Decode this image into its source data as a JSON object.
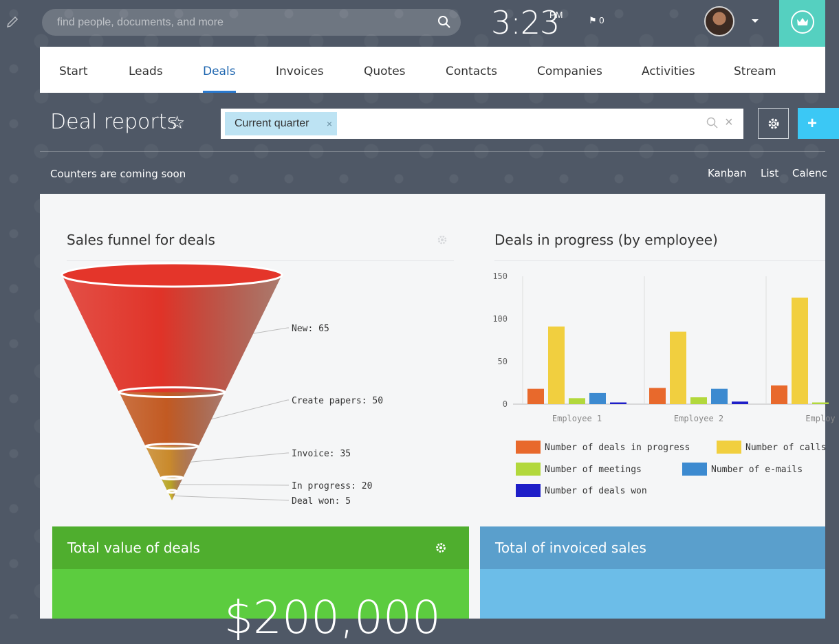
{
  "search": {
    "placeholder": "find people, documents, and more"
  },
  "header": {
    "time": "3:23",
    "ampm": "PM",
    "flag_count": "0"
  },
  "nav": {
    "items": [
      {
        "label": "Start"
      },
      {
        "label": "Leads"
      },
      {
        "label": "Deals"
      },
      {
        "label": "Invoices"
      },
      {
        "label": "Quotes"
      },
      {
        "label": "Contacts"
      },
      {
        "label": "Companies"
      },
      {
        "label": "Activities"
      },
      {
        "label": "Stream"
      }
    ],
    "active": "Deals"
  },
  "page": {
    "title": "Deal reports",
    "add_label": "+"
  },
  "filter": {
    "chip": "Current quarter",
    "chip_remove": "×",
    "clear": "×"
  },
  "subbar": {
    "counters": "Counters are coming soon",
    "views": [
      "Kanban",
      "List",
      "Calenc"
    ]
  },
  "widgets": {
    "funnel_title": "Sales funnel for deals",
    "bar_title": "Deals in progress (by employee)",
    "total_title": "Total value of deals",
    "total_value": "$200,000",
    "invoiced_title": "Total of invoiced sales"
  },
  "colors": {
    "accent_blue": "#2a7ad0",
    "teal": "#55d0c0",
    "green": "#5ccc3f",
    "light_blue": "#6cbde8"
  },
  "chart_data": [
    {
      "type": "funnel",
      "title": "Sales funnel for deals",
      "stages": [
        {
          "label": "New",
          "value": 65,
          "color": "#e03328"
        },
        {
          "label": "Create papers",
          "value": 50,
          "color": "#c25a22"
        },
        {
          "label": "Invoice",
          "value": 35,
          "color": "#c98a2c"
        },
        {
          "label": "In progress",
          "value": 20,
          "color": "#b8a424"
        },
        {
          "label": "Deal won",
          "value": 5,
          "color": "#c9b52c"
        }
      ]
    },
    {
      "type": "bar",
      "title": "Deals in progress (by employee)",
      "categories": [
        "Employee 1",
        "Employee 2",
        "Employ"
      ],
      "ylim": [
        0,
        150
      ],
      "yticks": [
        0,
        50,
        100,
        150
      ],
      "legend_position": "bottom",
      "series": [
        {
          "name": "Number of deals in progress",
          "color": "#e8692c",
          "values": [
            18,
            19,
            22
          ]
        },
        {
          "name": "Number of calls",
          "color": "#f1cf3f",
          "values": [
            91,
            85,
            125
          ]
        },
        {
          "name": "Number of meetings",
          "color": "#b2d83c",
          "values": [
            7,
            8,
            2
          ]
        },
        {
          "name": "Number of e-mails",
          "color": "#3c8ad0",
          "values": [
            13,
            18,
            null
          ]
        },
        {
          "name": "Number of deals won",
          "color": "#1e1ec8",
          "values": [
            2,
            3,
            null
          ]
        }
      ]
    }
  ]
}
